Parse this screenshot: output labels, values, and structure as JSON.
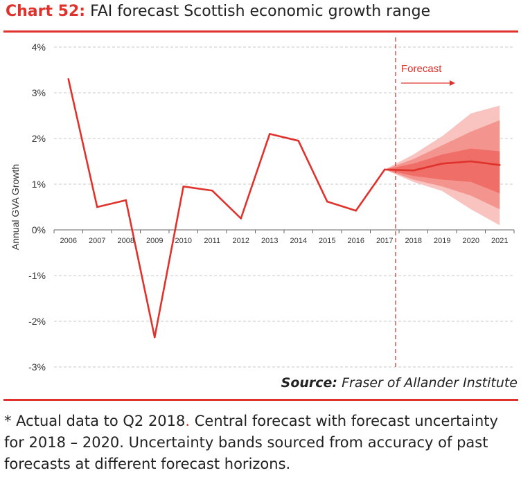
{
  "header": {
    "chart_number": "Chart 52:",
    "title": "FAI forecast Scottish economic growth range"
  },
  "source": {
    "label": "Source:",
    "text": "Fraser of Allander Institute"
  },
  "footnote": {
    "part1": "* Actual data to Q2 2018",
    "dot": ".",
    "part2": " Central forecast with forecast uncertainty for 2018 – 2020. Uncertainty bands sourced from accuracy of past forecasts at different forecast horizons."
  },
  "colors": {
    "accent": "#e0322c",
    "line": "#e0322c",
    "band_outer": "#f9c4c0",
    "band_mid": "#f4948e",
    "band_inner": "#ef6f68"
  },
  "chart_data": {
    "type": "line",
    "title": "",
    "xlabel": "",
    "ylabel": "Annual GVA Growth",
    "ylim": [
      -3,
      4
    ],
    "yticks": [
      "4%",
      "3%",
      "2%",
      "1%",
      "0%",
      "-1%",
      "-2%",
      "-3%"
    ],
    "ytick_values": [
      4,
      3,
      2,
      1,
      0,
      -1,
      -2,
      -3
    ],
    "categories": [
      "2006",
      "2007",
      "2008",
      "2009",
      "2010",
      "2011",
      "2012",
      "2013",
      "2014",
      "2015",
      "2016",
      "2017",
      "2018",
      "2019",
      "2020",
      "2021"
    ],
    "grid": true,
    "series": [
      {
        "values": [
          3.3,
          0.5,
          0.65,
          -2.35,
          0.95,
          0.86,
          0.25,
          2.1,
          1.95,
          0.62,
          0.42,
          1.32,
          1.3,
          1.45,
          1.5,
          1.42
        ]
      }
    ],
    "forecast": {
      "label": "Forecast",
      "start_index": 11,
      "bands": [
        {
          "level": "outer",
          "upper": [
            1.32,
            1.65,
            2.05,
            2.55,
            2.72
          ],
          "lower": [
            1.32,
            1.05,
            0.85,
            0.45,
            0.1
          ]
        },
        {
          "level": "middle",
          "upper": [
            1.32,
            1.55,
            1.85,
            2.15,
            2.4
          ],
          "lower": [
            1.32,
            1.1,
            0.95,
            0.75,
            0.45
          ]
        },
        {
          "level": "inner",
          "upper": [
            1.32,
            1.45,
            1.65,
            1.78,
            1.72
          ],
          "lower": [
            1.32,
            1.18,
            1.1,
            1.05,
            0.8
          ]
        }
      ]
    }
  }
}
